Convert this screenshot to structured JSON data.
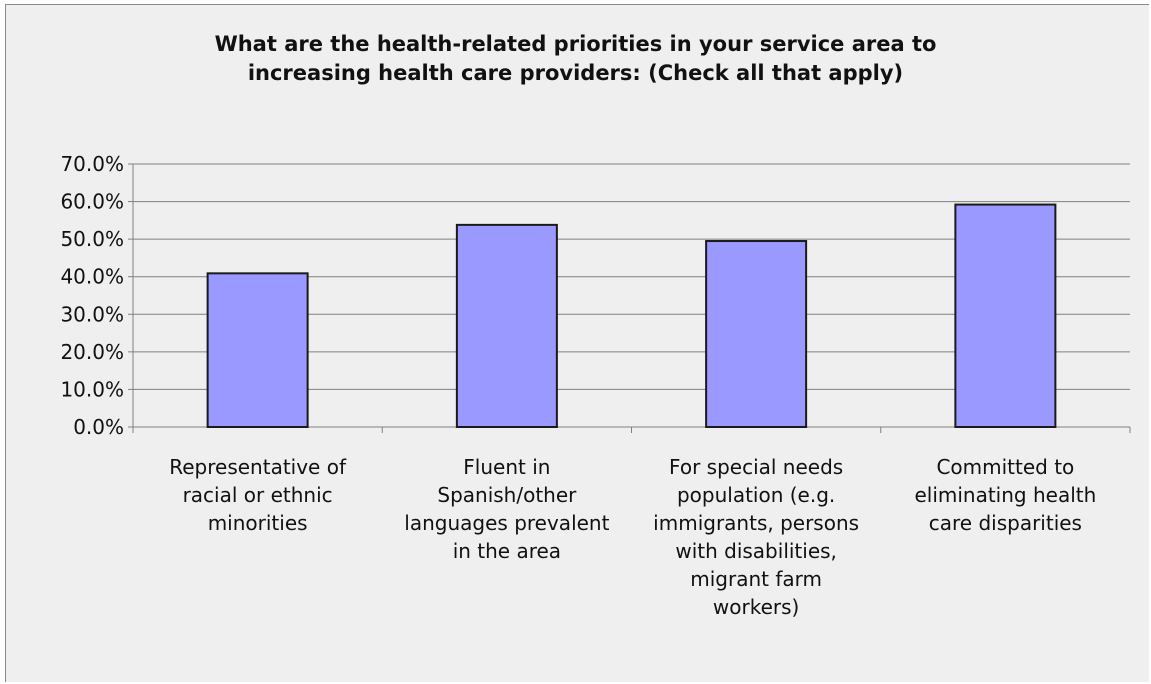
{
  "chart_data": {
    "type": "bar",
    "title": "What are the health-related priorities in your service area to increasing health care providers: (Check all that apply)",
    "title_lines": [
      "What are the health-related priorities in your service area to",
      "increasing health care providers: (Check all that apply)"
    ],
    "categories": [
      "Representative of racial or ethnic minorities",
      "Fluent in Spanish/other languages prevalent in the area",
      "For special needs population (e.g. immigrants, persons with disabilities, migrant farm workers)",
      "Committed to eliminating health care disparities"
    ],
    "category_lines": [
      [
        "Representative of",
        "racial or ethnic",
        "minorities"
      ],
      [
        "Fluent in",
        "Spanish/other",
        "languages prevalent",
        "in the area"
      ],
      [
        "For special needs",
        "population (e.g.",
        "immigrants, persons",
        "with disabilities,",
        "migrant farm",
        "workers)"
      ],
      [
        "Committed to",
        "eliminating health",
        "care disparities"
      ]
    ],
    "values": [
      0.409,
      0.538,
      0.495,
      0.592
    ],
    "ylim": [
      0,
      0.7
    ],
    "yticks": [
      "0.0%",
      "10.0%",
      "20.0%",
      "30.0%",
      "40.0%",
      "50.0%",
      "60.0%",
      "70.0%"
    ],
    "xlabel": "",
    "ylabel": "",
    "grid": true,
    "legend": "none",
    "colors": {
      "bar_fill": "#9999ff",
      "bar_stroke": "#1a1a1a",
      "grid": "#808080",
      "background": "#efefef"
    }
  }
}
